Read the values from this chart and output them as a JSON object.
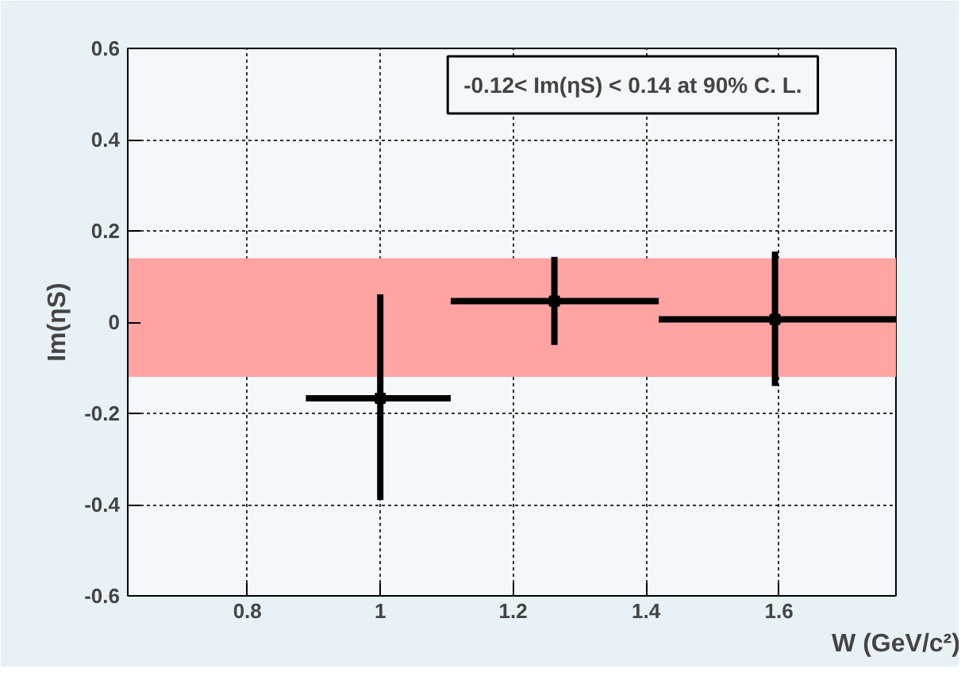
{
  "chart_data": {
    "type": "scatter",
    "xlabel": "W (GeV/c²)",
    "ylabel": "Im(ηS)",
    "x": [
      1.0,
      1.262,
      1.594
    ],
    "series": [
      {
        "color": "#000000",
        "values": [
          -0.167,
          0.046,
          0.006
        ],
        "errors": [
          [
            -0.39,
            0.061
          ],
          [
            -0.05,
            0.143
          ],
          [
            -0.14,
            0.155
          ]
        ],
        "xerrors": [
          [
            0.888,
            1.106
          ],
          [
            1.106,
            1.419
          ],
          [
            1.419,
            1.776
          ]
        ]
      }
    ],
    "xlim": [
      0.62,
      1.776
    ],
    "ylim": [
      -0.6,
      0.6
    ],
    "xticks": [
      0.8,
      1,
      1.2,
      1.4,
      1.6
    ],
    "yticks": [
      -0.6,
      -0.4,
      -0.2,
      0,
      0.2,
      0.4,
      0.6
    ],
    "bands": [
      {
        "axis": "y",
        "from": -0.12,
        "to": 0.14,
        "color": "#ffa3a3"
      }
    ],
    "annotations": [
      "-0.12< Im(ηS) < 0.14 at 90% C. L."
    ],
    "grid": true,
    "marker": "square"
  }
}
